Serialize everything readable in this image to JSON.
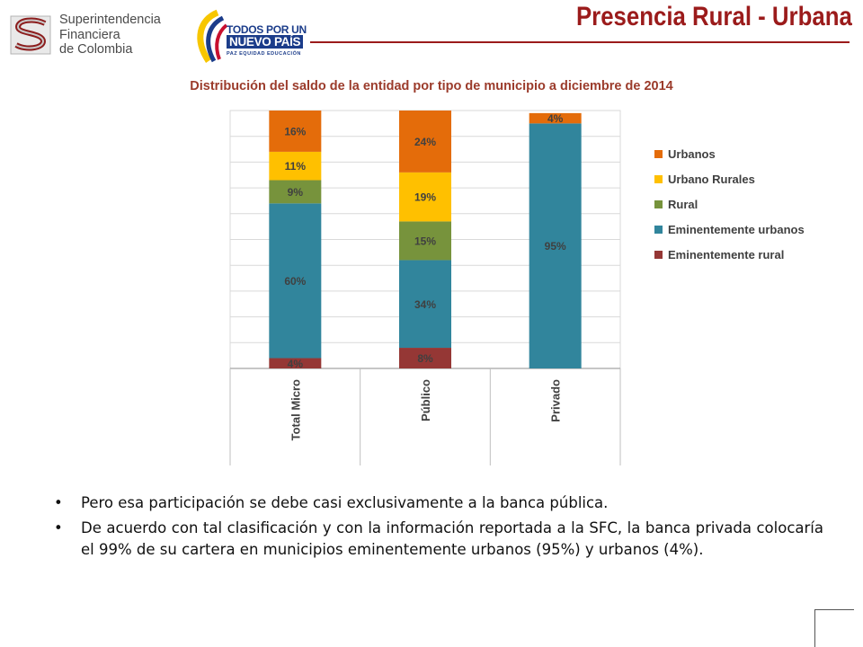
{
  "header": {
    "title": "Presencia Rural - Urbana",
    "logo_sfc": [
      "Superintendencia",
      "Financiera",
      "de Colombia"
    ],
    "logo_todos": [
      "TODOS POR UN",
      "NUEVO PAÍS",
      "PAZ  EQUIDAD  EDUCACIÓN"
    ]
  },
  "chart_data": {
    "type": "bar",
    "stacked": true,
    "title": "Distribución del saldo de la entidad por tipo de municipio a diciembre de 2014",
    "categories": [
      "Total Micro",
      "Público",
      "Privado"
    ],
    "series": [
      {
        "name": "Eminentemente rural",
        "color": "#953735",
        "values": [
          4,
          8,
          0
        ]
      },
      {
        "name": "Eminentemente urbanos",
        "color": "#31859c",
        "values": [
          60,
          34,
          95
        ]
      },
      {
        "name": "Rural",
        "color": "#77933c",
        "values": [
          9,
          15,
          0
        ]
      },
      {
        "name": "Urbano Rurales",
        "color": "#ffc000",
        "values": [
          11,
          19,
          0
        ]
      },
      {
        "name": "Urbanos",
        "color": "#e46c0a",
        "values": [
          16,
          24,
          4
        ]
      }
    ],
    "ylim": [
      0,
      100
    ],
    "grid": true,
    "legend_position": "right",
    "legend_order": [
      "Urbanos",
      "Urbano Rurales",
      "Rural",
      "Eminentemente urbanos",
      "Eminentemente rural"
    ]
  },
  "bullets": [
    "Pero esa participación se debe casi exclusivamente a la banca pública.",
    "De acuerdo con tal clasificación y con la información reportada a la SFC, la banca privada colocaría el 99% de su cartera en municipios eminentemente urbanos (95%) y urbanos (4%)."
  ]
}
